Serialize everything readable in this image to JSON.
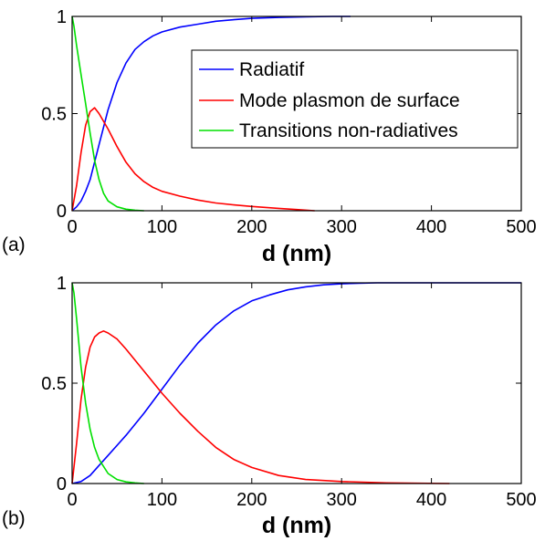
{
  "colors": {
    "Radiatif": "#0000ff",
    "Mode plasmon de surface": "#ff0000",
    "Transitions non-radiatives": "#00e000",
    "axes": "#000000",
    "background": "#ffffff"
  },
  "chart_data": [
    {
      "type": "line",
      "panel_label": "(a)",
      "xlabel": "d (nm)",
      "ylabel": "",
      "xlim": [
        0,
        500
      ],
      "ylim": [
        0,
        1
      ],
      "xticks": [
        0,
        100,
        200,
        300,
        400,
        500
      ],
      "yticks": [
        0,
        0.5,
        1
      ],
      "yticklabels": [
        "0",
        "0.5",
        "1"
      ],
      "grid": false,
      "legend": {
        "position": "top-right",
        "entries": [
          "Radiatif",
          "Mode plasmon de surface",
          "Transitions non-radiatives"
        ]
      },
      "series": [
        {
          "name": "Radiatif",
          "x": [
            0,
            5,
            10,
            15,
            20,
            30,
            40,
            50,
            60,
            70,
            80,
            90,
            100,
            120,
            140,
            160,
            180,
            200,
            230,
            260,
            290,
            310
          ],
          "y": [
            0,
            0.02,
            0.05,
            0.1,
            0.16,
            0.34,
            0.52,
            0.66,
            0.76,
            0.83,
            0.87,
            0.9,
            0.92,
            0.945,
            0.96,
            0.975,
            0.983,
            0.99,
            0.995,
            0.998,
            1.0,
            1.0
          ]
        },
        {
          "name": "Mode plasmon de surface",
          "x": [
            0,
            5,
            10,
            15,
            20,
            25,
            30,
            40,
            50,
            60,
            70,
            80,
            90,
            100,
            120,
            140,
            160,
            180,
            200,
            230,
            250,
            270
          ],
          "y": [
            0,
            0.13,
            0.3,
            0.44,
            0.51,
            0.53,
            0.5,
            0.42,
            0.33,
            0.25,
            0.19,
            0.15,
            0.12,
            0.1,
            0.075,
            0.055,
            0.04,
            0.03,
            0.022,
            0.012,
            0.006,
            0.0
          ]
        },
        {
          "name": "Transitions non-radiatives",
          "x": [
            0,
            2,
            5,
            10,
            15,
            20,
            25,
            30,
            35,
            40,
            50,
            60,
            70,
            80
          ],
          "y": [
            1.0,
            0.95,
            0.85,
            0.7,
            0.55,
            0.4,
            0.26,
            0.16,
            0.09,
            0.05,
            0.02,
            0.008,
            0.003,
            0.0
          ]
        }
      ]
    },
    {
      "type": "line",
      "panel_label": "(b)",
      "xlabel": "d (nm)",
      "ylabel": "",
      "xlim": [
        0,
        500
      ],
      "ylim": [
        0,
        1
      ],
      "xticks": [
        0,
        100,
        200,
        300,
        400,
        500
      ],
      "yticks": [
        0,
        0.5,
        1
      ],
      "yticklabels": [
        "0",
        "0.5",
        "1"
      ],
      "grid": false,
      "series": [
        {
          "name": "Radiatif",
          "x": [
            0,
            10,
            20,
            30,
            40,
            60,
            80,
            100,
            120,
            140,
            160,
            180,
            200,
            220,
            240,
            260,
            280,
            300,
            320,
            340,
            360,
            380,
            420,
            500
          ],
          "y": [
            0,
            0.01,
            0.04,
            0.09,
            0.14,
            0.24,
            0.35,
            0.47,
            0.59,
            0.7,
            0.79,
            0.86,
            0.91,
            0.94,
            0.965,
            0.98,
            0.99,
            0.995,
            0.998,
            1.0,
            1.0,
            1.0,
            1.0,
            1.0
          ]
        },
        {
          "name": "Mode plasmon de surface",
          "x": [
            0,
            5,
            10,
            15,
            20,
            25,
            30,
            35,
            40,
            50,
            60,
            80,
            100,
            120,
            140,
            160,
            180,
            200,
            230,
            260,
            300,
            350,
            420
          ],
          "y": [
            0,
            0.2,
            0.42,
            0.58,
            0.68,
            0.73,
            0.75,
            0.76,
            0.75,
            0.72,
            0.67,
            0.56,
            0.45,
            0.35,
            0.26,
            0.18,
            0.12,
            0.08,
            0.04,
            0.02,
            0.01,
            0.003,
            0.0
          ]
        },
        {
          "name": "Transitions non-radiatives",
          "x": [
            0,
            2,
            5,
            10,
            15,
            20,
            25,
            30,
            40,
            50,
            60,
            70,
            80
          ],
          "y": [
            1.0,
            0.95,
            0.82,
            0.58,
            0.4,
            0.27,
            0.18,
            0.12,
            0.05,
            0.02,
            0.008,
            0.003,
            0.0
          ]
        }
      ]
    }
  ]
}
